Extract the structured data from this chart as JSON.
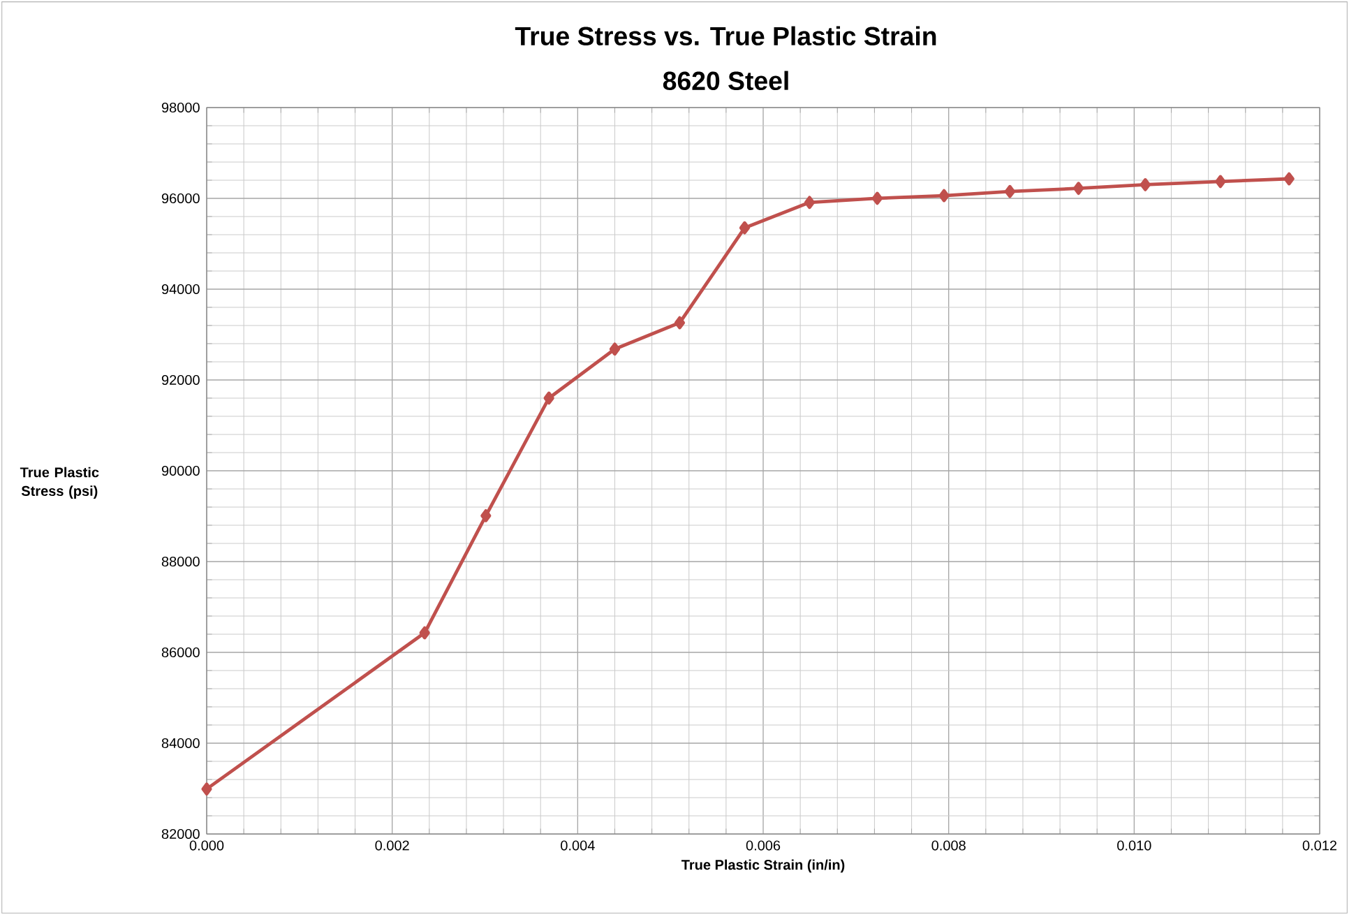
{
  "chart_data": {
    "type": "line",
    "title": "True Stress vs. True Plastic Strain",
    "subtitle": "8620 Steel",
    "xlabel": "True Plastic Strain (in/in)",
    "ylabel": "True Plastic Stress (psi)",
    "series": [
      {
        "color": "#c0504d",
        "x": [
          0,
          0.00235,
          0.00301,
          0.00369,
          0.0044,
          0.0051,
          0.0058,
          0.0065,
          0.00723,
          0.00795,
          0.00866,
          0.0094,
          0.01012,
          0.01093,
          0.01167
        ],
        "values": [
          82990,
          86430,
          89010,
          91600,
          92680,
          93260,
          95350,
          95910,
          96000,
          96060,
          96150,
          96220,
          96300,
          96370,
          96430
        ]
      }
    ],
    "xlim": [
      0,
      0.012
    ],
    "ylim": [
      82000,
      98000
    ],
    "xticks": [
      {
        "value": 0,
        "label": "0.000"
      },
      {
        "value": 0.002,
        "label": "0.002"
      },
      {
        "value": 0.004,
        "label": "0.004"
      },
      {
        "value": 0.006,
        "label": "0.006"
      },
      {
        "value": 0.008,
        "label": "0.008"
      },
      {
        "value": 0.01,
        "label": "0.010"
      },
      {
        "value": 0.012,
        "label": "0.012"
      }
    ],
    "yticks": [
      82000,
      84000,
      86000,
      88000,
      90000,
      92000,
      94000,
      96000,
      98000
    ],
    "grid": true,
    "marker": "diamond",
    "line_style": "solid"
  }
}
